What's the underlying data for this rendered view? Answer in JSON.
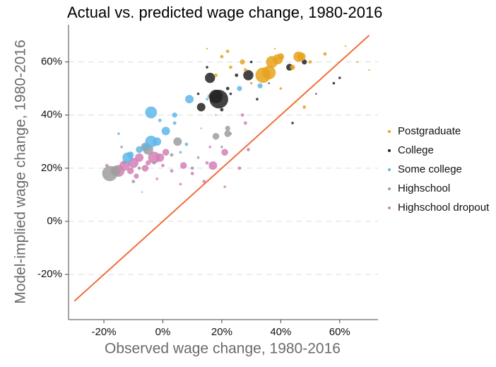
{
  "chart_data": {
    "type": "scatter",
    "title": "Actual vs. predicted wage change, 1980-2016",
    "x_label": "Observed wage change, 1980-2016",
    "y_label": "Model-implied wage change, 1980-2016",
    "xlim": [
      -32,
      73
    ],
    "ylim": [
      -37,
      74
    ],
    "xticks": [
      {
        "value": -20,
        "label": "-20%"
      },
      {
        "value": 0,
        "label": "0%"
      },
      {
        "value": 20,
        "label": "20%"
      },
      {
        "value": 40,
        "label": "40%"
      },
      {
        "value": 60,
        "label": "60%"
      }
    ],
    "yticks": [
      {
        "value": -20,
        "label": "-20%"
      },
      {
        "value": 0,
        "label": "0%"
      },
      {
        "value": 20,
        "label": "20%"
      },
      {
        "value": 40,
        "label": "40%"
      },
      {
        "value": 60,
        "label": "60%"
      }
    ],
    "grid": true,
    "legend": "right",
    "reference_line": {
      "x": [
        -30,
        70
      ],
      "y": [
        -30,
        70
      ],
      "color": "#f26b3a"
    },
    "series": [
      {
        "name": "Postgraduate",
        "color": "#e8a21c",
        "x": [
          34,
          36,
          37,
          39,
          40,
          46,
          47,
          44,
          27,
          28,
          20,
          22,
          48,
          50,
          55,
          62,
          66,
          70,
          18,
          40,
          45,
          30,
          23,
          52,
          38,
          15
        ],
        "y": [
          55,
          56,
          60,
          61,
          62,
          62,
          62,
          58,
          60,
          57,
          62,
          64,
          43,
          60,
          63,
          66,
          60,
          57,
          55,
          50,
          45,
          52,
          58,
          52,
          65,
          65
        ],
        "sizes": [
          9,
          8,
          7,
          6,
          4,
          6,
          5,
          3,
          3,
          2,
          2,
          2,
          2,
          2,
          2,
          1,
          1,
          1,
          2,
          1.5,
          1.5,
          1.5,
          2,
          1,
          1,
          1
        ]
      },
      {
        "name": "College",
        "color": "#222222",
        "x": [
          19,
          18,
          16,
          29,
          13,
          43,
          48,
          25,
          22,
          20,
          23,
          32,
          44,
          58,
          60,
          52,
          30,
          36,
          12,
          15
        ],
        "y": [
          46,
          47,
          54,
          55,
          43,
          58,
          60,
          55,
          50,
          42,
          48,
          46,
          37,
          52,
          54,
          48,
          60,
          52,
          48,
          58
        ],
        "sizes": [
          11,
          8,
          6,
          6,
          5,
          4,
          3,
          2,
          2,
          2,
          1.5,
          1.5,
          1.5,
          1.5,
          1.5,
          1,
          1.5,
          1,
          1.5,
          1.5
        ]
      },
      {
        "name": "Some college",
        "color": "#5fb6ea",
        "x": [
          -4,
          -12,
          -11,
          -4,
          -2,
          1,
          9,
          26,
          33,
          -8,
          -6,
          -1,
          4,
          4,
          -7,
          8,
          -15,
          15,
          6,
          18,
          13
        ],
        "y": [
          41,
          24,
          25,
          30,
          30,
          34,
          46,
          50,
          51,
          27,
          28,
          38,
          40,
          37,
          11,
          29,
          33,
          46,
          26,
          40,
          35
        ],
        "sizes": [
          7,
          6,
          4,
          7,
          5,
          5,
          5,
          3,
          3,
          4,
          3,
          2,
          3,
          2,
          1,
          2,
          1.5,
          1.5,
          1.5,
          1,
          1
        ]
      },
      {
        "name": "Highschool",
        "color": "#9e9e9e",
        "x": [
          -18,
          -16,
          -5,
          -6,
          5,
          18,
          22,
          22,
          16,
          -10,
          -13,
          3,
          -3,
          10,
          -8,
          12,
          -14,
          20
        ],
        "y": [
          18,
          19,
          27,
          28,
          30,
          32,
          33,
          35,
          47,
          15,
          22,
          25,
          22,
          20,
          20,
          24,
          28,
          28
        ],
        "sizes": [
          9,
          6,
          6,
          5,
          5,
          4,
          4,
          3,
          3,
          2,
          2,
          2,
          2,
          2,
          2,
          1.5,
          1.5,
          1.5
        ]
      },
      {
        "name": "Highschool dropout",
        "color": "#d47fb6",
        "x": [
          -15,
          -13,
          -10,
          -8,
          -3,
          -1,
          -6,
          1,
          7,
          17,
          21,
          -11,
          -9,
          -5,
          0,
          3,
          10,
          15,
          14,
          21,
          26,
          29,
          27,
          28,
          16,
          -19,
          6,
          23,
          -2
        ],
        "y": [
          19,
          21,
          22,
          24,
          24,
          24,
          20,
          26,
          21,
          21,
          26,
          19,
          17,
          22,
          21,
          19,
          18,
          22,
          15,
          13,
          20,
          27,
          40,
          37,
          28,
          21,
          14,
          33,
          16
        ],
        "sizes": [
          7,
          6,
          6,
          5,
          7,
          5,
          4,
          4,
          4,
          5,
          4,
          4,
          3,
          3,
          2,
          2,
          2,
          2,
          2,
          1.5,
          2,
          2,
          2,
          2,
          1.5,
          2,
          1.5,
          1.5,
          1.5
        ]
      }
    ]
  }
}
